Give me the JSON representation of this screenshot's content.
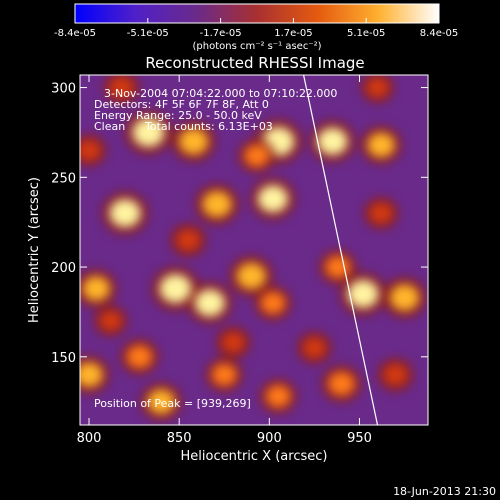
{
  "chart_data": {
    "type": "heatmap",
    "title": "Reconstructed RHESSI Image",
    "xlabel": "Heliocentric X (arcsec)",
    "ylabel": "Heliocentric Y (arcsec)",
    "xlim": [
      795,
      988
    ],
    "ylim": [
      112,
      307
    ],
    "xticks": [
      800,
      850,
      900,
      950
    ],
    "yticks": [
      150,
      200,
      250,
      300
    ],
    "colorbar": {
      "labels": [
        "-8.4e-05",
        "-5.1e-05",
        "-1.7e-05",
        "1.7e-05",
        "5.1e-05",
        "8.4e-05"
      ],
      "range": [
        -8.4e-05,
        8.4e-05
      ],
      "unit_label": "(photons cm⁻² s⁻¹ asec⁻²)",
      "stops": [
        "#0000ff",
        "#5020c8",
        "#6a2a8a",
        "#a83030",
        "#e55a10",
        "#ffb030",
        "#ffffff"
      ]
    },
    "annotations": {
      "time_range": "3-Nov-2004 07:04:22.000 to 07:10:22.000",
      "detectors": "Detectors: 4F 5F 6F 7F 8F, Att 0",
      "energy": "Energy Range: 25.0 - 50.0 keV",
      "clean_label": "Clean",
      "total_counts": "Total counts: 6.13E+03",
      "peak": "Position of Peak = [939,269]"
    },
    "peak_position": [
      939,
      269
    ],
    "limb_line": [
      [
        919,
        307
      ],
      [
        960,
        112
      ]
    ],
    "blobs": [
      {
        "x": 833,
        "y": 275,
        "v": 1.0
      },
      {
        "x": 858,
        "y": 270,
        "v": 0.85
      },
      {
        "x": 905,
        "y": 270,
        "v": 1.0
      },
      {
        "x": 935,
        "y": 270,
        "v": 0.9
      },
      {
        "x": 962,
        "y": 268,
        "v": 0.75
      },
      {
        "x": 893,
        "y": 262,
        "v": 0.6
      },
      {
        "x": 800,
        "y": 265,
        "v": 0.5
      },
      {
        "x": 820,
        "y": 230,
        "v": 0.95
      },
      {
        "x": 871,
        "y": 235,
        "v": 0.85
      },
      {
        "x": 902,
        "y": 238,
        "v": 0.9
      },
      {
        "x": 855,
        "y": 215,
        "v": 0.55
      },
      {
        "x": 848,
        "y": 188,
        "v": 1.0
      },
      {
        "x": 867,
        "y": 180,
        "v": 0.9
      },
      {
        "x": 804,
        "y": 188,
        "v": 0.75
      },
      {
        "x": 890,
        "y": 195,
        "v": 0.85
      },
      {
        "x": 902,
        "y": 180,
        "v": 0.6
      },
      {
        "x": 952,
        "y": 185,
        "v": 0.95
      },
      {
        "x": 975,
        "y": 183,
        "v": 0.85
      },
      {
        "x": 938,
        "y": 200,
        "v": 0.6
      },
      {
        "x": 800,
        "y": 140,
        "v": 0.75
      },
      {
        "x": 828,
        "y": 150,
        "v": 0.65
      },
      {
        "x": 840,
        "y": 125,
        "v": 0.75
      },
      {
        "x": 875,
        "y": 140,
        "v": 0.6
      },
      {
        "x": 905,
        "y": 128,
        "v": 0.6
      },
      {
        "x": 940,
        "y": 135,
        "v": 0.7
      },
      {
        "x": 970,
        "y": 140,
        "v": 0.55
      },
      {
        "x": 962,
        "y": 230,
        "v": 0.5
      },
      {
        "x": 818,
        "y": 300,
        "v": 0.55
      },
      {
        "x": 960,
        "y": 300,
        "v": 0.45
      },
      {
        "x": 925,
        "y": 155,
        "v": 0.5
      },
      {
        "x": 880,
        "y": 158,
        "v": 0.5
      },
      {
        "x": 812,
        "y": 170,
        "v": 0.45
      }
    ]
  },
  "footer": {
    "date": "18-Jun-2013 21:30"
  }
}
